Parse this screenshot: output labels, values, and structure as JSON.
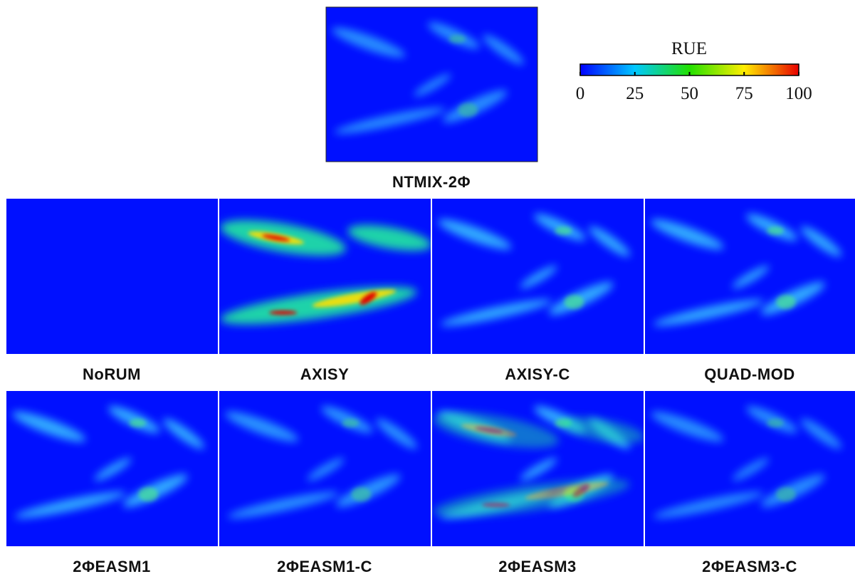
{
  "colorbar": {
    "title": "RUE",
    "lim": [
      0,
      100
    ],
    "ticks": [
      0,
      25,
      50,
      75,
      100
    ]
  },
  "panels": [
    {
      "label": "NTMIX-2Φ"
    },
    {
      "label": "NoRUM"
    },
    {
      "label": "AXISY"
    },
    {
      "label": "AXISY-C"
    },
    {
      "label": "QUAD-MOD"
    },
    {
      "label": "2ΦEASM1"
    },
    {
      "label": "2ΦEASM1-C"
    },
    {
      "label": "2ΦEASM3"
    },
    {
      "label": "2ΦEASM3-C"
    }
  ]
}
